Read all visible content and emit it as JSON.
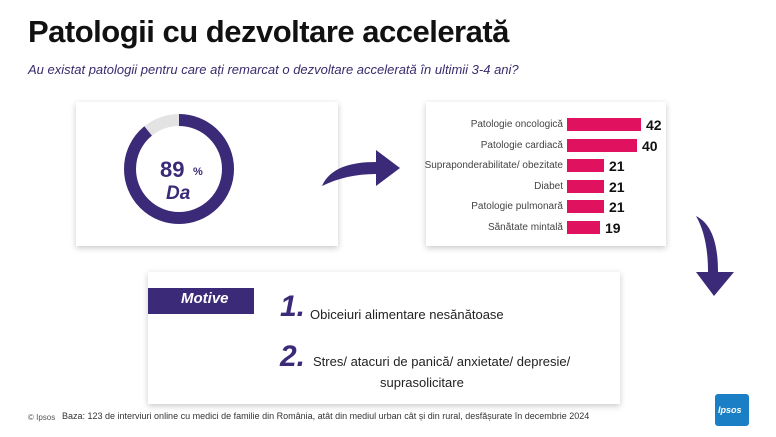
{
  "title": "Patologii cu dezvoltare accelerată",
  "subtitle": "Au existat patologii pentru care ați remarcat o dezvoltare accelerată în ultimii 3-4 ani?",
  "donut": {
    "value": 89,
    "percent_sign": "%",
    "label": "Da",
    "color": "#3b2a78",
    "track_color": "#e3e3e3"
  },
  "chart_data": {
    "type": "bar",
    "orientation": "horizontal",
    "categories": [
      "Patologie oncologică",
      "Patologie cardiacă",
      "Supraponderabilitate/ obezitate",
      "Diabet",
      "Patologie pulmonară",
      "Sănătate mintală"
    ],
    "values": [
      42,
      40,
      21,
      21,
      21,
      19
    ],
    "value_labels": [
      "42",
      "40",
      "21",
      "21",
      "21",
      "19"
    ],
    "bar_color": "#e0115f"
  },
  "motive": {
    "heading": "Motive",
    "items": [
      {
        "num": "1.",
        "text": "Obiceiuri alimentare nesănătoase"
      },
      {
        "num": "2.",
        "text_line1": "Stres/ atacuri de panică/ anxietate/ depresie/",
        "text_line2": "suprasolicitare"
      }
    ]
  },
  "footer": {
    "copyright": "© Ipsos",
    "base": "Baza: 123 de interviuri online cu medici de familie din România, atât din mediul urban cât și din rural, desfășurate în decembrie 2024"
  },
  "logo": {
    "text": "Ipsos",
    "color": "#1a7fc4"
  },
  "arrow_color": "#3b2a78"
}
